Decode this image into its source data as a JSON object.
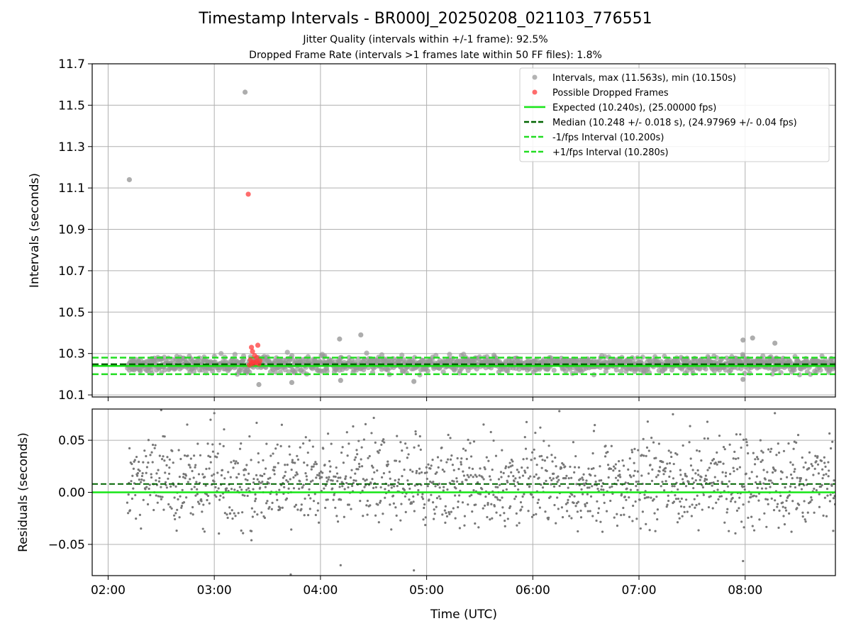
{
  "title": "Timestamp Intervals - BR000J_20250208_021103_776551",
  "subtitle_jitter": "Jitter Quality (intervals within +/-1 frame): 92.5%",
  "subtitle_dropped": "Dropped Frame Rate (intervals >1 frames late within 50 FF files): 1.8%",
  "colors": {
    "interval_points": "#999999",
    "dropped_points": "#ff3b3b",
    "expected_line": "#16e516",
    "median_line": "#006400",
    "fps_interval_lines": "#22dd22",
    "residual_points": "#777777"
  },
  "chart_data": [
    {
      "type": "scatter",
      "ylabel": "Intervals (seconds)",
      "x_unit": "hours UTC",
      "xlim": [
        1.85,
        8.85
      ],
      "ylim": [
        10.09,
        11.7
      ],
      "yticks": [
        "10.1",
        "10.3",
        "10.5",
        "10.7",
        "10.9",
        "11.1",
        "11.3",
        "11.5",
        "11.7"
      ],
      "ytick_values": [
        10.1,
        10.3,
        10.5,
        10.7,
        10.9,
        11.1,
        11.3,
        11.5,
        11.7
      ],
      "xticks": [
        "02:00",
        "03:00",
        "04:00",
        "05:00",
        "06:00",
        "07:00",
        "08:00"
      ],
      "xtick_values": [
        2,
        3,
        4,
        5,
        6,
        7,
        8
      ],
      "grid": true,
      "legend_position": "top-right",
      "legend": [
        "Intervals, max (11.563s), min (10.150s)",
        "Possible Dropped Frames",
        "Expected (10.240s), (25.00000 fps)",
        "Median (10.248 +/- 0.018 s), (24.97969 +/- 0.04 fps)",
        "-1/fps Interval (10.200s)",
        "+1/fps Interval (10.280s)"
      ],
      "reference_lines": {
        "expected": 10.24,
        "median": 10.248,
        "minus_fps": 10.2,
        "plus_fps": 10.28
      },
      "data_range": {
        "x_start": 2.18,
        "x_end": 8.85,
        "median": 10.248,
        "spread": 0.018
      },
      "outliers": [
        {
          "x": 2.2,
          "y": 11.14
        },
        {
          "x": 3.29,
          "y": 11.563
        },
        {
          "x": 3.42,
          "y": 10.15
        },
        {
          "x": 3.73,
          "y": 10.16
        },
        {
          "x": 4.19,
          "y": 10.17
        },
        {
          "x": 4.38,
          "y": 10.39
        },
        {
          "x": 4.18,
          "y": 10.37
        },
        {
          "x": 4.88,
          "y": 10.165
        },
        {
          "x": 7.98,
          "y": 10.365
        },
        {
          "x": 8.07,
          "y": 10.375
        },
        {
          "x": 8.28,
          "y": 10.35
        },
        {
          "x": 7.98,
          "y": 10.175
        }
      ],
      "dropped_frames": [
        {
          "x": 3.32,
          "y": 11.07
        },
        {
          "x": 3.35,
          "y": 10.33
        },
        {
          "x": 3.41,
          "y": 10.34
        },
        {
          "x": 3.36,
          "y": 10.31
        },
        {
          "x": 3.38,
          "y": 10.29
        },
        {
          "x": 3.4,
          "y": 10.28
        },
        {
          "x": 3.34,
          "y": 10.27
        },
        {
          "x": 3.37,
          "y": 10.26
        },
        {
          "x": 3.39,
          "y": 10.255
        },
        {
          "x": 3.42,
          "y": 10.25
        },
        {
          "x": 3.33,
          "y": 10.245
        },
        {
          "x": 3.36,
          "y": 10.25
        },
        {
          "x": 3.4,
          "y": 10.26
        },
        {
          "x": 3.35,
          "y": 10.255
        },
        {
          "x": 3.43,
          "y": 10.265
        }
      ]
    },
    {
      "type": "scatter",
      "ylabel": "Residuals (seconds)",
      "xlabel": "Time (UTC)",
      "xlim": [
        1.85,
        8.85
      ],
      "ylim": [
        -0.08,
        0.08
      ],
      "yticks": [
        "−0.05",
        "0.00",
        "0.05"
      ],
      "ytick_values": [
        -0.05,
        0.0,
        0.05
      ],
      "xticks": [
        "02:00",
        "03:00",
        "04:00",
        "05:00",
        "06:00",
        "07:00",
        "08:00"
      ],
      "xtick_values": [
        2,
        3,
        4,
        5,
        6,
        7,
        8
      ],
      "grid": true,
      "reference_lines": {
        "zero": 0.0,
        "median_offset": 0.008
      },
      "data_range": {
        "x_start": 2.18,
        "x_end": 8.85,
        "center": 0.01,
        "spread": 0.022
      },
      "outliers": [
        {
          "x": 3.35,
          "y": -0.046
        },
        {
          "x": 3.72,
          "y": -0.079
        },
        {
          "x": 4.19,
          "y": -0.07
        },
        {
          "x": 4.88,
          "y": -0.075
        },
        {
          "x": 7.98,
          "y": -0.066
        },
        {
          "x": 2.5,
          "y": 0.079
        },
        {
          "x": 3.0,
          "y": 0.076
        },
        {
          "x": 6.25,
          "y": 0.078
        },
        {
          "x": 7.32,
          "y": 0.075
        },
        {
          "x": 8.28,
          "y": 0.076
        }
      ]
    }
  ]
}
